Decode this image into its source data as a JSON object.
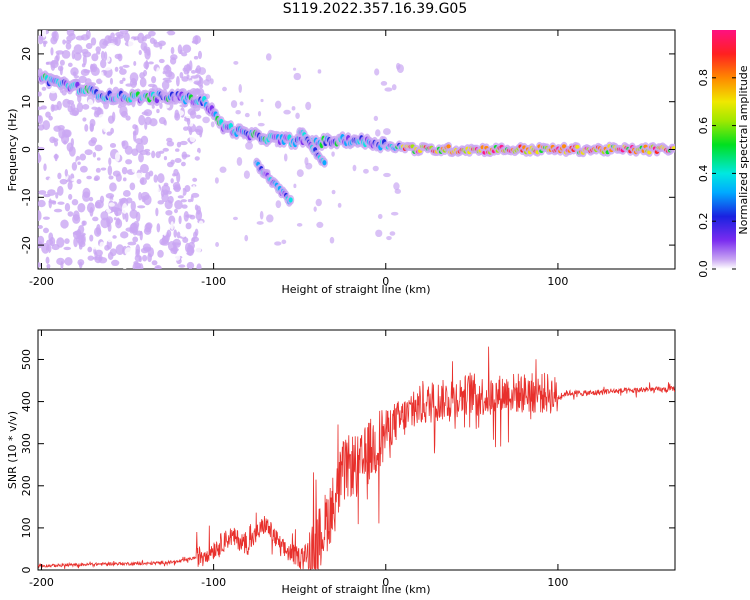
{
  "title": "S119.2022.357.16.39.G05",
  "chart_data": [
    {
      "type": "heatmap",
      "xlabel": "Height of straight line (km)",
      "ylabel": "Frequency (Hz)",
      "xlim": [
        -202,
        168
      ],
      "ylim": [
        -25,
        25
      ],
      "xticks": [
        -200,
        -100,
        0,
        100
      ],
      "yticks": [
        20,
        10,
        0,
        -10,
        -20
      ],
      "colorbar": {
        "label": "Normalized spectral amplitude",
        "range": [
          0,
          1
        ],
        "ticks": [
          "0.0",
          "0.2",
          "0.4",
          "0.6",
          "0.8"
        ],
        "colors": [
          "#ffffff",
          "#c9a6f2",
          "#7a2cf0",
          "#1a22e0",
          "#00aaff",
          "#00e8e0",
          "#00e020",
          "#a0e800",
          "#f0e800",
          "#ff8800",
          "#ff2020",
          "#ff1080"
        ]
      },
      "features": [
        {
          "name": "main-trace",
          "points": [
            [
              -200,
              15
            ],
            [
              -180,
              13
            ],
            [
              -160,
              11
            ],
            [
              -140,
              11
            ],
            [
              -120,
              11
            ],
            [
              -105,
              10
            ],
            [
              -95,
              5
            ],
            [
              -80,
              3
            ],
            [
              -60,
              2
            ],
            [
              -40,
              1.5
            ],
            [
              -20,
              2
            ],
            [
              0,
              1
            ],
            [
              20,
              0
            ],
            [
              60,
              0
            ],
            [
              100,
              0
            ],
            [
              168,
              0
            ]
          ]
        },
        {
          "name": "descending-branch",
          "points": [
            [
              -75,
              -3
            ],
            [
              -68,
              -6
            ],
            [
              -60,
              -9
            ],
            [
              -55,
              -11
            ]
          ]
        },
        {
          "name": "secondary-branch",
          "points": [
            [
              -50,
              4
            ],
            [
              -45,
              2
            ],
            [
              -40,
              -1
            ],
            [
              -35,
              -3
            ]
          ]
        }
      ]
    },
    {
      "type": "line",
      "xlabel": "Height of straight line (km)",
      "ylabel": "SNR (10 * v/v)",
      "xlim": [
        -202,
        168
      ],
      "ylim": [
        0,
        570
      ],
      "xticks": [
        -200,
        -100,
        0,
        100
      ],
      "yticks": [
        0,
        100,
        200,
        300,
        400,
        500
      ],
      "color": "#e8302c",
      "x": [
        -200,
        -180,
        -160,
        -140,
        -120,
        -110,
        -100,
        -90,
        -80,
        -70,
        -60,
        -50,
        -40,
        -30,
        -25,
        -20,
        -15,
        -10,
        -5,
        0,
        5,
        10,
        20,
        30,
        40,
        50,
        60,
        70,
        80,
        90,
        95,
        100,
        105,
        110,
        120,
        130,
        140,
        150,
        160,
        168
      ],
      "y": [
        10,
        12,
        15,
        15,
        20,
        30,
        50,
        80,
        60,
        110,
        50,
        30,
        60,
        160,
        230,
        250,
        240,
        280,
        300,
        330,
        350,
        360,
        390,
        400,
        410,
        420,
        410,
        420,
        420,
        420,
        420,
        410,
        420,
        420,
        420,
        425,
        425,
        428,
        428,
        430
      ]
    }
  ]
}
